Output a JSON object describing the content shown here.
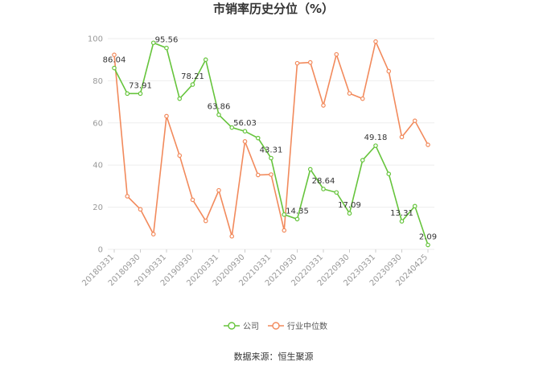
{
  "chart_data": {
    "type": "line",
    "title": "市销率历史分位（%）",
    "ylim": [
      0,
      100
    ],
    "yticks": [
      0,
      20,
      40,
      60,
      80,
      100
    ],
    "xtick_labels": [
      "20180331",
      "20180930",
      "20190331",
      "20190930",
      "20200331",
      "20200930",
      "20210331",
      "20210930",
      "20220331",
      "20220930",
      "20230331",
      "20230930",
      "20240425"
    ],
    "grid": true,
    "legend_position": "bottom",
    "series": [
      {
        "name": "公司",
        "color": "#66c43c",
        "values": [
          86.04,
          73.91,
          73.91,
          98.0,
          95.56,
          71.5,
          78.21,
          90.0,
          63.86,
          57.8,
          56.03,
          52.8,
          43.31,
          16.5,
          14.35,
          38.0,
          28.64,
          27.0,
          17.09,
          42.3,
          49.18,
          35.8,
          13.31,
          20.5,
          2.09
        ],
        "labels": {
          "0": "86.04",
          "2": "73.91",
          "4": "95.56",
          "6": "78.21",
          "8": "63.86",
          "10": "56.03",
          "12": "43.31",
          "14": "14.35",
          "16": "28.64",
          "18": "17.09",
          "20": "49.18",
          "22": "13.31",
          "24": "2.09"
        }
      },
      {
        "name": "行业中位数",
        "color": "#f28a5c",
        "values": [
          92.3,
          25.2,
          19.0,
          7.2,
          63.2,
          44.5,
          23.5,
          13.5,
          28.0,
          6.2,
          51.2,
          35.3,
          35.5,
          9.0,
          88.3,
          88.7,
          68.3,
          92.5,
          74.0,
          71.5,
          98.6,
          84.5,
          53.3,
          61.0,
          49.6
        ]
      }
    ]
  },
  "source": "数据来源：恒生聚源"
}
